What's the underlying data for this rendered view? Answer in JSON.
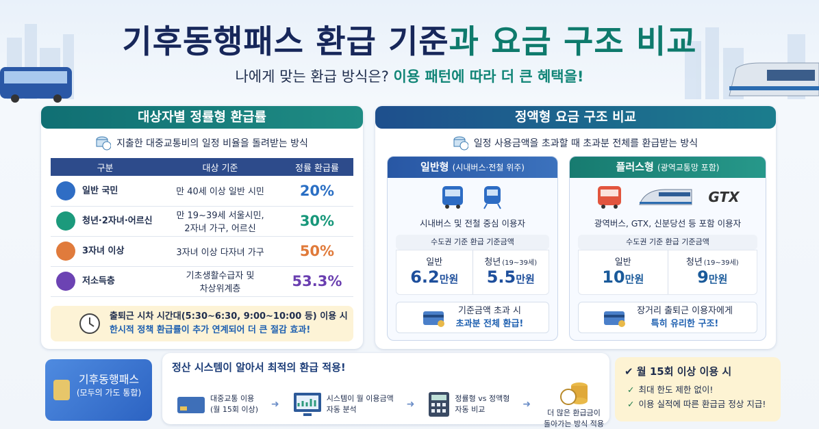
{
  "header": {
    "title_main": "기후동행패스 환급 기준",
    "title_accent": "과 요금 구조 비교",
    "subtitle_lead": "나에게 맞는 환급 방식은?",
    "subtitle_accent": "이용 패턴에 따라 더 큰 혜택을!"
  },
  "rate_panel": {
    "title": "대상자별 정률형 환급률",
    "description": "지출한 대중교통비의 일정 비율을 돌려받는 방식",
    "table": {
      "columns": [
        "구분",
        "대상 기준",
        "정률 환급률"
      ],
      "rows": [
        [
          "일반 국민",
          "만 40세 이상 일반 시민",
          "20%"
        ],
        [
          "청년·2자녀·어르신",
          "만 19~39세 서울시민,\n2자녀 가구, 어르신",
          "30%"
        ],
        [
          "3자녀 이상",
          "3자녀 이상 다자녀 가구",
          "50%"
        ],
        [
          "저소득층",
          "기초생활수급자 및\n차상위계층",
          "53.3%"
        ]
      ]
    },
    "note": [
      "출퇴근 시차 시간대(5:30~6:30, 9:00~10:00 등) 이용 시",
      "한시적 정책 환급률이 추가 연계되어 더 큰 절감 효과!"
    ]
  },
  "fixed_panel": {
    "title": "정액형 요금 구조 비교",
    "description": "일정 사용금액을 초과할 때 초과분 전체를 환급받는 방식",
    "plans": [
      {
        "name": "일반형",
        "scope": "(시내버스·전철 위주)",
        "users": "시내버스 및 전철 중심 이용자",
        "base_label": "수도권 기준 환급 기준금액",
        "tiers": [
          {
            "label": "일반",
            "amount": "6.2",
            "unit": "만원"
          },
          {
            "label": "청년",
            "age": "(19~39세)",
            "amount": "5.5",
            "unit": "만원"
          }
        ],
        "note": [
          "기준금액 초과 시",
          "초과분 전체 환급!"
        ]
      },
      {
        "name": "플러스형",
        "scope": "(광역교통망 포함)",
        "badge": "GTX",
        "users": "광역버스, GTX, 신분당선 등 포함 이용자",
        "base_label": "수도권 기준 환급 기준금액",
        "tiers": [
          {
            "label": "일반",
            "amount": "10",
            "unit": "만원"
          },
          {
            "label": "청년",
            "age": "(19~39세)",
            "amount": "9",
            "unit": "만원"
          }
        ],
        "note": [
          "장거리 출퇴근 이용자에게",
          "특히 유리한 구조!"
        ]
      }
    ]
  },
  "bottom": {
    "card": {
      "name": "기후동행패스",
      "sub": "(모두의 가도 통합)"
    },
    "flow": {
      "title": "정산 시스템이 알아서 최적의 환급 적용!",
      "steps": [
        [
          "대중교통 이용",
          "(월 15회 이상)"
        ],
        [
          "시스템이 월 이용금액",
          "자동 분석"
        ],
        [
          "정률형 vs 정액형",
          "자동 비교"
        ],
        [
          "더 많은 환급금이",
          "돌아가는 방식 적용"
        ]
      ]
    },
    "benefits": {
      "title": "월 15회 이상 이용 시",
      "items": [
        "최대 한도 제한 없이!",
        "이용 실적에 따른 환급금 정상 지급!"
      ]
    }
  }
}
